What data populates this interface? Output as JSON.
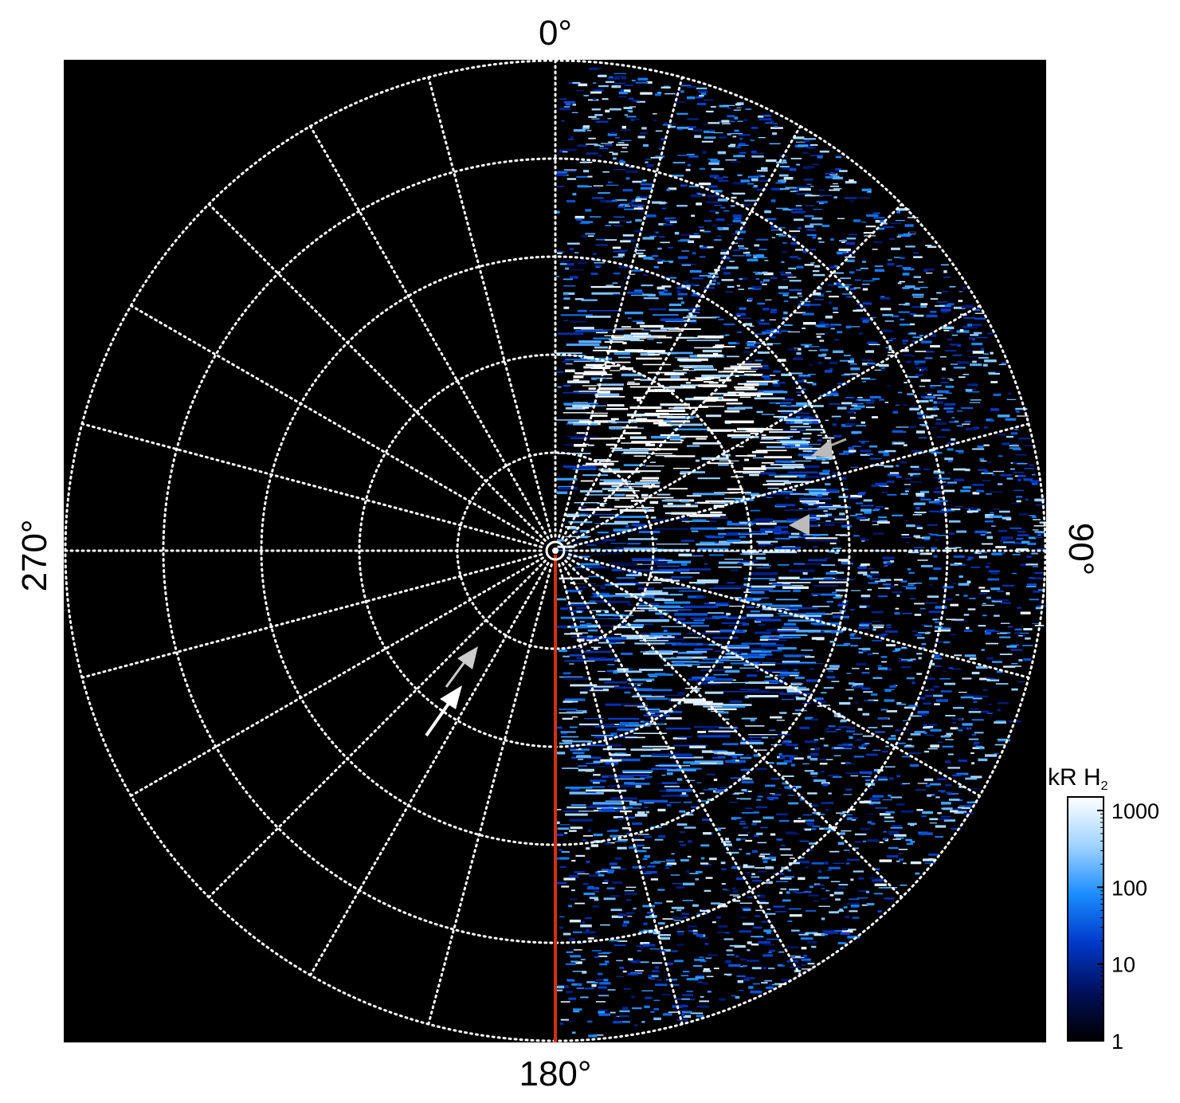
{
  "chart_data": {
    "type": "heatmap",
    "projection": "polar",
    "angular_labels": [
      {
        "angle": 0,
        "text": "0°"
      },
      {
        "angle": 90,
        "text": "90°"
      },
      {
        "angle": 180,
        "text": "180°"
      },
      {
        "angle": 270,
        "text": "270°"
      }
    ],
    "angular_grid_step_deg": 15,
    "radial_rings": 5,
    "grid": "dotted white",
    "background": "#000000",
    "colorbar": {
      "title": "kR H",
      "title_subscript": "2",
      "scale": "log",
      "range": [
        1,
        1500
      ],
      "ticks": [
        {
          "value": 1,
          "label": "1"
        },
        {
          "value": 10,
          "label": "10"
        },
        {
          "value": 100,
          "label": "100"
        },
        {
          "value": 1000,
          "label": "1000"
        }
      ],
      "colors": [
        "#000000",
        "#00105a",
        "#0038c8",
        "#1a8cff",
        "#9fd3ff",
        "#ffffff"
      ]
    },
    "emission": {
      "longitude_range": [
        0,
        180
      ],
      "bright_patch_center_deg": 40,
      "bright_patch_intensity": 1500,
      "background_intensity": 100
    },
    "reference_line": {
      "angle": 180,
      "color": "#d23010"
    },
    "annotations": [
      {
        "type": "arrow",
        "color": "#ffffff",
        "direction": "pointing toward pole"
      },
      {
        "type": "arrow",
        "color": "#cccccc",
        "direction": "pointing toward pole"
      },
      {
        "type": "arrowhead",
        "color": "#bbbbbb",
        "direction": "pointing toward pole"
      },
      {
        "type": "arrowhead",
        "color": "#bbbbbb",
        "direction": "pointing left"
      }
    ]
  }
}
